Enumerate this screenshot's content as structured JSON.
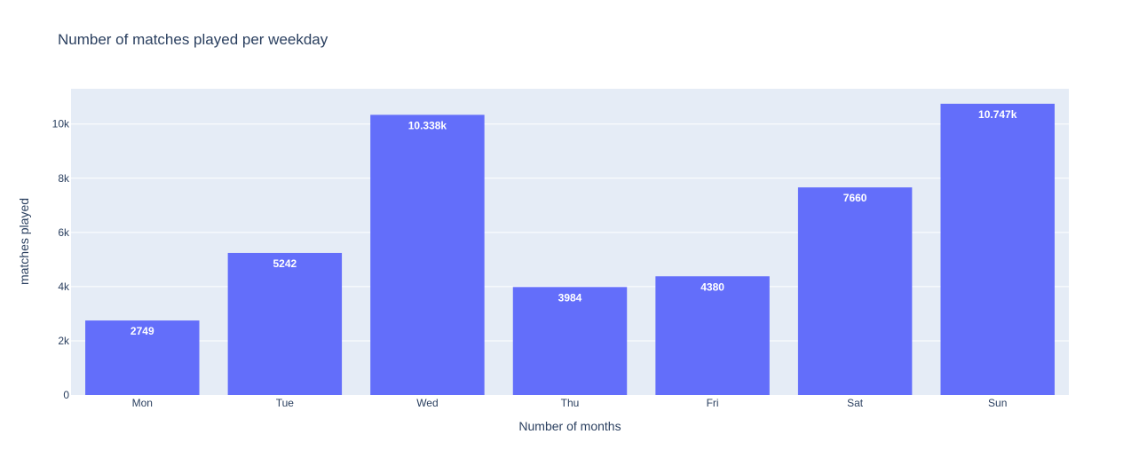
{
  "chart_data": {
    "type": "bar",
    "title": "Number of matches played per weekday",
    "xlabel": "Number of months",
    "ylabel": "matches played",
    "categories": [
      "Mon",
      "Tue",
      "Wed",
      "Thu",
      "Fri",
      "Sat",
      "Sun"
    ],
    "values": [
      2749,
      5242,
      10338,
      3984,
      4380,
      7660,
      10747
    ],
    "value_labels": [
      "2749",
      "5242",
      "10.338k",
      "3984",
      "4380",
      "7660",
      "10.747k"
    ],
    "ylim": [
      0,
      11300
    ],
    "yticks": [
      0,
      2000,
      4000,
      6000,
      8000,
      10000
    ],
    "ytick_labels": [
      "0",
      "2k",
      "4k",
      "6k",
      "8k",
      "10k"
    ],
    "grid": true,
    "colors": {
      "bar": "#636efa",
      "plot_bg": "#e5ecf6",
      "grid": "#ffffff",
      "text": "#2a3f5f"
    }
  }
}
